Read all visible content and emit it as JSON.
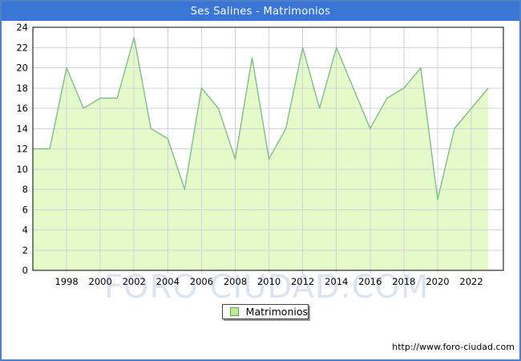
{
  "header": {
    "title": "Ses Salines - Matrimonios"
  },
  "watermark": {
    "text": "FORO CIUDAD.COM"
  },
  "legend": {
    "label": "Matrimonios"
  },
  "footer": {
    "url": "http://www.foro-ciudad.com"
  },
  "colors": {
    "frame_border": "#4d80c4",
    "titlebar_bg": "#3a76d5",
    "titlebar_text": "#ffffff",
    "watermark_text": "#dce4f1",
    "area_fill": "#e4fac9",
    "line": "#7fbe8a",
    "grid": "#d4d1dc",
    "axis_border": "#000000",
    "tick_text": "#000000",
    "legend_swatch_fill": "#bdea8c",
    "legend_swatch_border": "#5fa05f"
  },
  "chart_data": {
    "type": "area",
    "title": "Ses Salines - Matrimonios",
    "series_name": "Matrimonios",
    "x": [
      1996,
      1997,
      1998,
      1999,
      2000,
      2001,
      2002,
      2003,
      2004,
      2005,
      2006,
      2007,
      2008,
      2009,
      2010,
      2011,
      2012,
      2013,
      2014,
      2015,
      2016,
      2017,
      2018,
      2019,
      2020,
      2021,
      2022,
      2023
    ],
    "values": [
      12,
      12,
      20,
      16,
      17,
      17,
      23,
      14,
      13,
      8,
      18,
      16,
      11,
      21,
      11,
      14,
      22,
      16,
      22,
      18,
      14,
      17,
      18,
      20,
      7,
      14,
      16,
      18
    ],
    "xlabel": "",
    "ylabel": "",
    "ylim": [
      0,
      24
    ],
    "ytick_step": 2,
    "xticks": [
      1998,
      2000,
      2002,
      2004,
      2006,
      2008,
      2010,
      2012,
      2014,
      2016,
      2018,
      2020,
      2022
    ],
    "grid": true,
    "legend_position": "bottom-center"
  }
}
